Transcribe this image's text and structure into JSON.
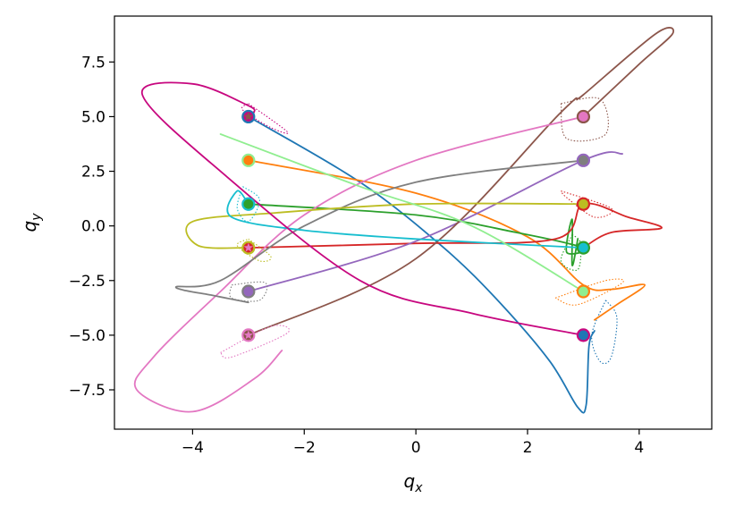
{
  "chart_data": {
    "type": "line",
    "xlabel_base": "q",
    "xlabel_sub": "x",
    "ylabel_base": "q",
    "ylabel_sub": "y",
    "xlim": [
      -5.4,
      5.3
    ],
    "ylim": [
      -9.3,
      9.6
    ],
    "xticks": [
      -4,
      -2,
      0,
      2,
      4
    ],
    "xtick_labels": [
      "−4",
      "−2",
      "0",
      "2",
      "4"
    ],
    "yticks": [
      -7.5,
      -5.0,
      -2.5,
      0.0,
      2.5,
      5.0,
      7.5
    ],
    "ytick_labels": [
      "−7.5",
      "−5.0",
      "−2.5",
      "0.0",
      "2.5",
      "5.0",
      "7.5"
    ],
    "grid": false,
    "legend": "none",
    "series": [
      {
        "color": "#1f77b4",
        "points": [
          [
            -3,
            5
          ],
          [
            -1,
            2
          ],
          [
            0.5,
            -1
          ],
          [
            1.5,
            -3.5
          ],
          [
            2.4,
            -6.2
          ],
          [
            2.9,
            -8.3
          ],
          [
            3.05,
            -8.2
          ],
          [
            3.1,
            -5.5
          ],
          [
            3.2,
            -4.8
          ]
        ],
        "dotted": [
          [
            3.4,
            -3.4
          ],
          [
            3.6,
            -4.2
          ],
          [
            3.5,
            -6
          ],
          [
            3.3,
            -6.2
          ],
          [
            3.15,
            -5
          ],
          [
            3.4,
            -3.4
          ]
        ]
      },
      {
        "color": "#ff7f0e",
        "points": [
          [
            -3,
            3
          ],
          [
            0,
            1.5
          ],
          [
            2,
            -0.5
          ],
          [
            3,
            -2.7
          ],
          [
            3.5,
            -2.9
          ],
          [
            4.1,
            -2.7
          ],
          [
            3.6,
            -3.6
          ],
          [
            3.2,
            -4.3
          ]
        ],
        "dotted": [
          [
            2.5,
            -3.3
          ],
          [
            3.4,
            -2.5
          ],
          [
            3.7,
            -2.6
          ],
          [
            2.9,
            -3.6
          ],
          [
            2.5,
            -3.3
          ]
        ]
      },
      {
        "color": "#2ca02c",
        "points": [
          [
            -3,
            1
          ],
          [
            0,
            0.5
          ],
          [
            1.8,
            -0.3
          ],
          [
            3,
            -1
          ],
          [
            2.7,
            -1.2
          ],
          [
            2.8,
            0.3
          ],
          [
            2.8,
            -1.8
          ],
          [
            2.9,
            -0.6
          ]
        ],
        "dotted": [
          [
            2.8,
            -0.4
          ],
          [
            2.6,
            -1.6
          ],
          [
            2.9,
            -2.0
          ],
          [
            2.95,
            -0.8
          ],
          [
            2.8,
            -0.4
          ]
        ]
      },
      {
        "color": "#d62728",
        "points": [
          [
            -3,
            -1
          ],
          [
            0,
            -0.8
          ],
          [
            2.5,
            -0.6
          ],
          [
            3,
            1
          ],
          [
            3.8,
            0.4
          ],
          [
            4.4,
            -0.1
          ],
          [
            3.5,
            -0.3
          ],
          [
            3,
            -1
          ]
        ],
        "dotted": [
          [
            2.6,
            1.6
          ],
          [
            3.5,
            0.8
          ],
          [
            3.2,
            0.4
          ],
          [
            2.7,
            1.3
          ],
          [
            2.6,
            1.6
          ]
        ]
      },
      {
        "color": "#9467bd",
        "points": [
          [
            -3,
            -3
          ],
          [
            0,
            -0.7
          ],
          [
            3,
            3
          ],
          [
            3.7,
            3.3
          ]
        ],
        "dotted": []
      },
      {
        "color": "#8c564b",
        "points": [
          [
            -3,
            -5
          ],
          [
            0,
            -1.5
          ],
          [
            2.6,
            5.2
          ],
          [
            3,
            6
          ],
          [
            4.3,
            8.8
          ],
          [
            4.6,
            8.8
          ],
          [
            4,
            7.4
          ],
          [
            3,
            5
          ]
        ],
        "dotted": [
          [
            2.6,
            5.6
          ],
          [
            3.3,
            5.8
          ],
          [
            3.4,
            4.2
          ],
          [
            2.7,
            4.0
          ],
          [
            2.6,
            5.6
          ]
        ]
      },
      {
        "color": "#e377c2",
        "points": [
          [
            3,
            5
          ],
          [
            0,
            3
          ],
          [
            -2,
            0.5
          ],
          [
            -3.5,
            -3
          ],
          [
            -4.7,
            -6
          ],
          [
            -5,
            -7.5
          ],
          [
            -4,
            -8.5
          ],
          [
            -2.9,
            -7
          ],
          [
            -2.4,
            -5.7
          ]
        ],
        "dotted": [
          [
            -3.5,
            -5.8
          ],
          [
            -2.6,
            -4.6
          ],
          [
            -2.3,
            -4.9
          ],
          [
            -3.3,
            -6
          ],
          [
            -3.5,
            -5.8
          ]
        ]
      },
      {
        "color": "#7f7f7f",
        "points": [
          [
            3,
            3
          ],
          [
            0,
            2
          ],
          [
            -2,
            0
          ],
          [
            -3.5,
            -2.5
          ],
          [
            -4.3,
            -2.8
          ],
          [
            -3.6,
            -3.2
          ],
          [
            -3,
            -3.5
          ]
        ],
        "dotted": [
          [
            -3.3,
            -2.7
          ],
          [
            -2.7,
            -2.6
          ],
          [
            -2.8,
            -3.4
          ],
          [
            -3.3,
            -3.3
          ],
          [
            -3.3,
            -2.7
          ]
        ]
      },
      {
        "color": "#bcbd22",
        "points": [
          [
            3,
            1
          ],
          [
            0,
            1
          ],
          [
            -2.5,
            0.6
          ],
          [
            -4,
            0.2
          ],
          [
            -3.9,
            -0.9
          ],
          [
            -3,
            -1
          ]
        ],
        "dotted": [
          [
            -3.0,
            -0.6
          ],
          [
            -2.6,
            -1.4
          ],
          [
            -2.8,
            -1.6
          ],
          [
            -3.2,
            -0.9
          ],
          [
            -3.0,
            -0.6
          ]
        ]
      },
      {
        "color": "#17becf",
        "points": [
          [
            3,
            -1
          ],
          [
            0,
            -0.6
          ],
          [
            -2,
            -0.2
          ],
          [
            -3.3,
            0.4
          ],
          [
            -3.2,
            1.6
          ],
          [
            -3,
            1
          ]
        ],
        "dotted": [
          [
            -3.1,
            1.8
          ],
          [
            -2.8,
            1.2
          ],
          [
            -3.0,
            0.2
          ],
          [
            -3.2,
            0.8
          ],
          [
            -3.1,
            1.8
          ]
        ]
      },
      {
        "color": "#c7077f",
        "points": [
          [
            3,
            -5
          ],
          [
            1,
            -4
          ],
          [
            -1,
            -2.5
          ],
          [
            -3.5,
            2.5
          ],
          [
            -4.9,
            6
          ],
          [
            -4,
            6.5
          ],
          [
            -3,
            5.5
          ],
          [
            -2.9,
            5.2
          ]
        ],
        "dotted": [
          [
            -3.0,
            5.6
          ],
          [
            -2.3,
            4.3
          ],
          [
            -2.6,
            4.5
          ],
          [
            -3.1,
            5.3
          ],
          [
            -3.0,
            5.6
          ]
        ]
      },
      {
        "color": "#90ee90",
        "points": [
          [
            -3.5,
            4.2
          ],
          [
            -1,
            1.8
          ],
          [
            1,
            0
          ],
          [
            3,
            -3
          ]
        ],
        "dotted": []
      }
    ],
    "start_markers": [
      {
        "x": -3,
        "y": 5,
        "face": "#c7077f",
        "edge": "#1f77b4",
        "star": "#8c564b"
      },
      {
        "x": -3,
        "y": 3,
        "face": "#ff7f0e",
        "edge": "#90ee90",
        "star": "#ff7f0e"
      },
      {
        "x": -3,
        "y": 1,
        "face": "#2ca02c",
        "edge": "#17becf",
        "star": "#2ca02c"
      },
      {
        "x": -3,
        "y": -1,
        "face": "#d62728",
        "edge": "#bcbd22",
        "star": "#e377c2"
      },
      {
        "x": -3,
        "y": -3,
        "face": "#9467bd",
        "edge": "#7f7f7f",
        "star": "#9467bd"
      },
      {
        "x": -3,
        "y": -5,
        "face": "#8c564b",
        "edge": "#e377c2",
        "star": "#e377c2"
      },
      {
        "x": 3,
        "y": 5,
        "face": "#e377c2",
        "edge": "#8c564b",
        "star": "#e377c2"
      },
      {
        "x": 3,
        "y": 3,
        "face": "#7f7f7f",
        "edge": "#9467bd",
        "star": "#7f7f7f"
      },
      {
        "x": 3,
        "y": 1,
        "face": "#bcbd22",
        "edge": "#d62728",
        "star": "#bcbd22"
      },
      {
        "x": 3,
        "y": -1,
        "face": "#17becf",
        "edge": "#2ca02c",
        "star": "#17becf"
      },
      {
        "x": 3,
        "y": -3,
        "face": "#90ee90",
        "edge": "#ff7f0e",
        "star": "#90ee90"
      },
      {
        "x": 3,
        "y": -5,
        "face": "#1f77b4",
        "edge": "#c7077f",
        "star": "#1f77b4"
      }
    ]
  }
}
